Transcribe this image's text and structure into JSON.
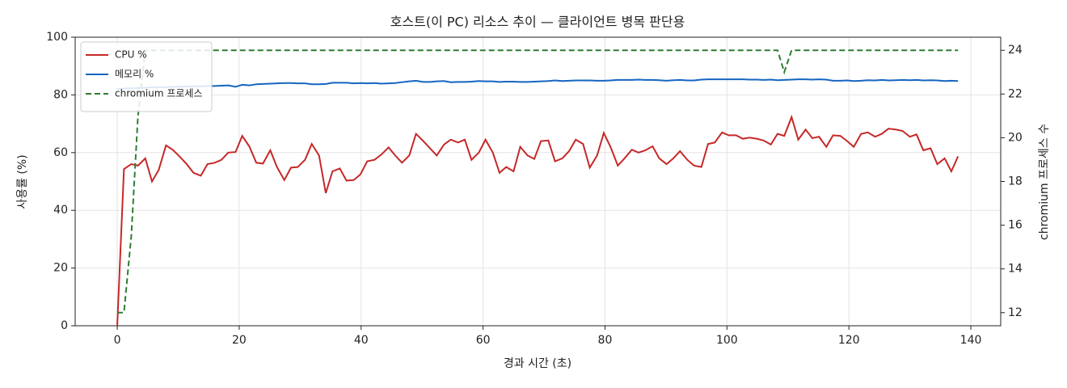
{
  "chart_data": {
    "type": "line",
    "title": "호스트(이 PC) 리소스 추이 — 클라이언트 병목 판단용",
    "xlabel": "경과 시간 (초)",
    "ylabel": "사용률 (%)",
    "y2label": "chromium 프로세스 수",
    "x": [
      0,
      1.1,
      2.3,
      3.4,
      4.6,
      5.7,
      6.8,
      8.0,
      9.1,
      10.3,
      11.4,
      12.5,
      13.7,
      14.8,
      16.0,
      17.1,
      18.2,
      19.4,
      20.5,
      21.7,
      22.8,
      23.9,
      25.1,
      26.2,
      27.4,
      28.5,
      29.6,
      30.8,
      31.9,
      33.1,
      34.2,
      35.3,
      36.5,
      37.6,
      38.8,
      39.9,
      41.0,
      42.2,
      43.3,
      44.5,
      45.6,
      46.7,
      47.9,
      49.0,
      50.2,
      51.3,
      52.4,
      53.6,
      54.7,
      55.9,
      57.0,
      58.1,
      59.3,
      60.4,
      61.6,
      62.7,
      63.8,
      65.0,
      66.1,
      67.3,
      68.4,
      69.5,
      70.7,
      71.8,
      73.0,
      74.1,
      75.2,
      76.4,
      77.5,
      78.7,
      79.8,
      80.9,
      82.1,
      83.2,
      84.4,
      85.5,
      86.6,
      87.8,
      88.9,
      90.1,
      91.2,
      92.3,
      93.5,
      94.6,
      95.8,
      96.9,
      98.0,
      99.2,
      100.3,
      101.5,
      102.6,
      103.7,
      104.9,
      106.0,
      107.2,
      108.3,
      109.4,
      110.6,
      111.7,
      112.9,
      114.0,
      115.1,
      116.3,
      117.4,
      118.6,
      119.7,
      120.8,
      122.0,
      123.1,
      124.3,
      125.4,
      126.5,
      127.7,
      128.8,
      130.0,
      131.1,
      132.2,
      133.4,
      134.5,
      135.7,
      136.8,
      137.9
    ],
    "series": [
      {
        "name": "CPU %",
        "color": "#c62828",
        "linestyle": "solid",
        "values": [
          0,
          54.3,
          56,
          55.5,
          58,
          50,
          54,
          62.5,
          61,
          58.5,
          56,
          53,
          52,
          56,
          56.5,
          57.5,
          60,
          60.2,
          65.8,
          62,
          56.5,
          56.2,
          60.8,
          55,
          50.5,
          54.8,
          55,
          57.5,
          63,
          59,
          46,
          53.5,
          54.5,
          50.3,
          50.5,
          52.5,
          57,
          57.5,
          59.3,
          61.8,
          59,
          56.5,
          59,
          66.5,
          64,
          61.5,
          59,
          62.8,
          64.5,
          63.5,
          64.5,
          57.5,
          60,
          64.5,
          60,
          53,
          55,
          53.5,
          62,
          59,
          57.8,
          64,
          64.2,
          57,
          58,
          60.5,
          64.5,
          63,
          54.8,
          59,
          66.8,
          62,
          55.5,
          58,
          61,
          60,
          60.8,
          62.2,
          58,
          56,
          58,
          60.5,
          57.5,
          55.5,
          55,
          63,
          63.5,
          67,
          66,
          66,
          64.8,
          65.2,
          64.8,
          64.2,
          62.8,
          66.5,
          65.8,
          72.3,
          64.5,
          68,
          65,
          65.5,
          62,
          66,
          65.8,
          64,
          62,
          66.5,
          67,
          65.5,
          66.5,
          68.3,
          68,
          67.5,
          65.5,
          66.3,
          60.8,
          61.5,
          56,
          58,
          53.5,
          58.7
        ]
      },
      {
        "name": "메모리 %",
        "color": "#1565c0",
        "linestyle": "solid",
        "values": [
          82,
          82.2,
          82.3,
          82.4,
          82.5,
          82.6,
          82.6,
          82.7,
          82.8,
          82.8,
          82.9,
          83,
          83,
          83.1,
          83.1,
          83.2,
          83.3,
          82.8,
          83.5,
          83.3,
          83.7,
          83.8,
          83.9,
          84,
          84.1,
          84.1,
          84,
          84,
          83.7,
          83.7,
          83.8,
          84.2,
          84.2,
          84.2,
          84,
          84.1,
          84,
          84.1,
          83.9,
          84,
          84.1,
          84.4,
          84.7,
          84.9,
          84.5,
          84.5,
          84.7,
          84.8,
          84.4,
          84.5,
          84.5,
          84.6,
          84.8,
          84.7,
          84.7,
          84.5,
          84.6,
          84.6,
          84.5,
          84.5,
          84.6,
          84.7,
          84.8,
          85,
          84.8,
          84.9,
          85,
          85,
          85,
          84.9,
          84.9,
          85,
          85.2,
          85.2,
          85.2,
          85.3,
          85.2,
          85.2,
          85.1,
          84.9,
          85.1,
          85.2,
          85,
          85,
          85.3,
          85.4,
          85.4,
          85.4,
          85.4,
          85.4,
          85.4,
          85.3,
          85.3,
          85.2,
          85.3,
          85.1,
          85.2,
          85.3,
          85.4,
          85.4,
          85.3,
          85.4,
          85.3,
          84.9,
          84.9,
          85,
          84.8,
          84.9,
          85.1,
          85,
          85.2,
          85,
          85.1,
          85.2,
          85.1,
          85.2,
          85,
          85.1,
          85,
          84.8,
          84.9,
          84.8
        ]
      },
      {
        "name": "chromium 프로세스",
        "color": "#2e7d32",
        "linestyle": "dashed",
        "axis": "y2",
        "values": [
          12,
          12,
          15.5,
          21,
          24,
          24,
          24,
          24,
          24,
          24,
          24,
          24,
          24,
          24,
          24,
          24,
          24,
          24,
          24,
          24,
          24,
          24,
          24,
          24,
          24,
          24,
          24,
          24,
          24,
          24,
          24,
          24,
          24,
          24,
          24,
          24,
          24,
          24,
          24,
          24,
          24,
          24,
          24,
          24,
          24,
          24,
          24,
          24,
          24,
          24,
          24,
          24,
          24,
          24,
          24,
          24,
          24,
          24,
          24,
          24,
          24,
          24,
          24,
          24,
          24,
          24,
          24,
          24,
          24,
          24,
          24,
          24,
          24,
          24,
          24,
          24,
          24,
          24,
          24,
          24,
          24,
          24,
          24,
          24,
          24,
          24,
          24,
          24,
          24,
          24,
          24,
          24,
          24,
          24,
          24,
          24,
          23,
          24,
          24,
          24,
          24,
          24,
          24,
          24,
          24,
          24,
          24,
          24,
          24,
          24,
          24,
          24,
          24,
          24,
          24,
          24,
          24,
          24,
          24,
          24,
          24,
          24
        ]
      }
    ],
    "xlim": [
      -6.9,
      144.9
    ],
    "xticks": [
      0,
      20,
      40,
      60,
      80,
      100,
      120,
      140
    ],
    "ylim": [
      0,
      100
    ],
    "yticks": [
      0,
      20,
      40,
      60,
      80,
      100
    ],
    "y2lim": [
      11.4,
      24.6
    ],
    "y2ticks": [
      12,
      14,
      16,
      18,
      20,
      22,
      24
    ],
    "grid": true,
    "legend": "upper-left"
  }
}
